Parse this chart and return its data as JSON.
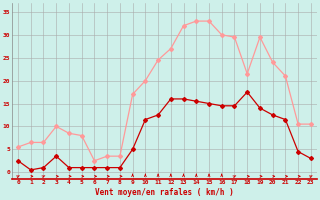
{
  "hours": [
    0,
    1,
    2,
    3,
    4,
    5,
    6,
    7,
    8,
    9,
    10,
    11,
    12,
    13,
    14,
    15,
    16,
    17,
    18,
    19,
    20,
    21,
    22,
    23
  ],
  "wind_avg": [
    2.5,
    0.5,
    1.0,
    3.5,
    1.0,
    1.0,
    1.0,
    1.0,
    1.0,
    5.0,
    11.5,
    12.5,
    16.0,
    16.0,
    15.5,
    15.0,
    14.5,
    14.5,
    17.5,
    14.0,
    12.5,
    11.5,
    4.5,
    3.0
  ],
  "wind_gust": [
    5.5,
    6.5,
    6.5,
    10.0,
    8.5,
    8.0,
    2.5,
    3.5,
    3.5,
    17.0,
    20.0,
    24.5,
    27.0,
    32.0,
    33.0,
    33.0,
    30.0,
    29.5,
    21.5,
    29.5,
    24.0,
    21.0,
    10.5,
    10.5
  ],
  "wind_avg_color": "#cc0000",
  "wind_gust_color": "#ff9999",
  "background_color": "#cef0ea",
  "grid_color": "#aaaaaa",
  "xlabel": "Vent moyen/en rafales ( km/h )",
  "xlabel_color": "#cc0000",
  "tick_color": "#cc0000",
  "spine_color": "#cc0000",
  "ylim": [
    -1.5,
    37
  ],
  "yticks": [
    0,
    5,
    10,
    15,
    20,
    25,
    30,
    35
  ],
  "xlim": [
    -0.5,
    23.5
  ],
  "arrow_angles_deg": [
    225,
    270,
    225,
    270,
    270,
    270,
    270,
    270,
    270,
    180,
    180,
    180,
    180,
    180,
    180,
    180,
    180,
    225,
    270,
    270,
    270,
    270,
    270,
    225
  ]
}
